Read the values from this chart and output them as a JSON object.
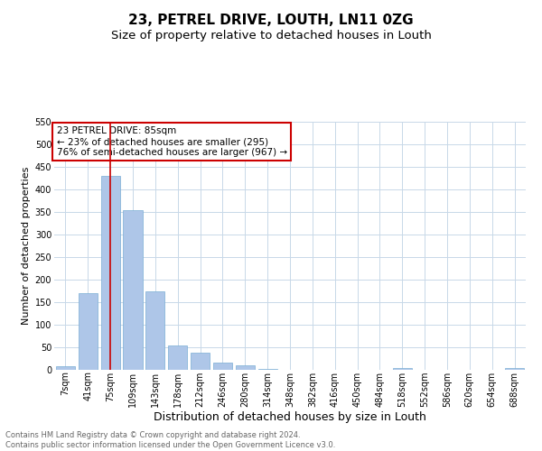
{
  "title": "23, PETREL DRIVE, LOUTH, LN11 0ZG",
  "subtitle": "Size of property relative to detached houses in Louth",
  "xlabel": "Distribution of detached houses by size in Louth",
  "ylabel": "Number of detached properties",
  "footer_line1": "Contains HM Land Registry data © Crown copyright and database right 2024.",
  "footer_line2": "Contains public sector information licensed under the Open Government Licence v3.0.",
  "bar_labels": [
    "7sqm",
    "41sqm",
    "75sqm",
    "109sqm",
    "143sqm",
    "178sqm",
    "212sqm",
    "246sqm",
    "280sqm",
    "314sqm",
    "348sqm",
    "382sqm",
    "416sqm",
    "450sqm",
    "484sqm",
    "518sqm",
    "552sqm",
    "586sqm",
    "620sqm",
    "654sqm",
    "688sqm"
  ],
  "bar_values": [
    8,
    170,
    430,
    355,
    175,
    55,
    38,
    17,
    10,
    3,
    1,
    0,
    0,
    0,
    0,
    4,
    0,
    0,
    0,
    0,
    4
  ],
  "bar_color": "#aec6e8",
  "bar_edge_color": "#7aadd4",
  "vline_x": 2,
  "vline_color": "#cc0000",
  "annotation_text": "23 PETREL DRIVE: 85sqm\n← 23% of detached houses are smaller (295)\n76% of semi-detached houses are larger (967) →",
  "annotation_box_color": "#ffffff",
  "annotation_box_edge": "#cc0000",
  "ylim": [
    0,
    550
  ],
  "yticks": [
    0,
    50,
    100,
    150,
    200,
    250,
    300,
    350,
    400,
    450,
    500,
    550
  ],
  "bg_color": "#ffffff",
  "grid_color": "#c8d8e8",
  "title_fontsize": 11,
  "subtitle_fontsize": 9.5,
  "xlabel_fontsize": 9,
  "ylabel_fontsize": 8,
  "tick_fontsize": 7,
  "annotation_fontsize": 7.5,
  "footer_fontsize": 6
}
